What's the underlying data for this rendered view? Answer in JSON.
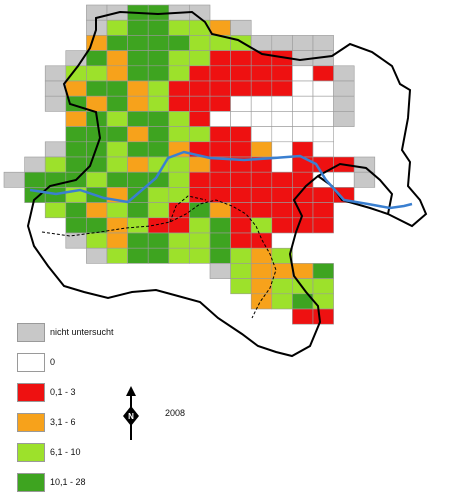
{
  "colors": {
    "not_examined": "#c8c8c8",
    "zero": "#ffffff",
    "c1": "#ee1111",
    "c2": "#f7a21b",
    "c3": "#9de12b",
    "c4": "#3ea420",
    "river": "#3a7fd0",
    "border": "#000000",
    "grid": "#9a9a9a"
  },
  "legend": [
    {
      "label": "nicht untersucht",
      "color_key": "not_examined"
    },
    {
      "label": "0",
      "color_key": "zero"
    },
    {
      "label": "0,1 - 3",
      "color_key": "c1"
    },
    {
      "label": "3,1 - 6",
      "color_key": "c2"
    },
    {
      "label": "6,1 - 10",
      "color_key": "c3"
    },
    {
      "label": "10,1 - 28",
      "color_key": "c4"
    }
  ],
  "year": "2008",
  "north_icon": "north-arrow-icon",
  "grid_rows": [
    "....NNDDNN..........",
    "....NLDDLLON........",
    "....ODCDDLLLNNNN....",
    "...NDOCDLLRRRRNN....",
    "..NLLODCLRRRRRWRN...",
    "..NODDOLRRRRRRWWN...",
    "..NDODOLRRRWWWWWN...",
    "...ODLCDLRWWWWWWN...",
    "...DDDODLLRRWWWW....",
    "..NDDLDDORRROWRW....",
    ".NLDDLOLLORRRWRRRN..",
    "NDDDLDDDLRRRRRRWWN..",
    ".DDLDODLLRRRRRRRR...",
    "..LDOLDLRDORRRRR....",
    "...DDOLRRLDRLRRR....",
    "...NLODDLLDRR.......",
    "....NLDDLLDLOL......",
    "..........NLOOOD....",
    "...........LOLLL....",
    "............OLDL....",
    "..............RR...."
  ]
}
